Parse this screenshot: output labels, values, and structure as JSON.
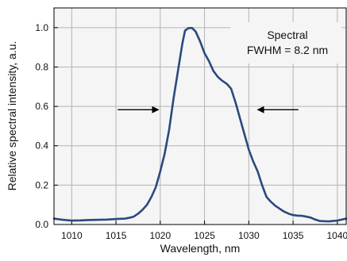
{
  "chart_data": {
    "type": "line",
    "xlabel": "Wavelength, nm",
    "ylabel": "Relative spectral intensity, a.u.",
    "xlim": [
      1008,
      1041
    ],
    "ylim": [
      0,
      1.1
    ],
    "x_ticks": [
      1010,
      1015,
      1020,
      1025,
      1030,
      1035,
      1040
    ],
    "y_ticks": [
      0.0,
      0.2,
      0.4,
      0.6,
      0.8,
      1.0
    ],
    "y_tick_labels": [
      "0.0",
      "0.2",
      "0.4",
      "0.6",
      "0.8",
      "1.0"
    ],
    "grid": true,
    "annotation": {
      "lines": [
        "Spectral",
        "FWHM = 8.2 nm"
      ]
    },
    "arrows": [
      {
        "from": [
          1015.2,
          0.583
        ],
        "to": [
          1019.8,
          0.583
        ]
      },
      {
        "from": [
          1035.6,
          0.583
        ],
        "to": [
          1031.0,
          0.583
        ]
      }
    ],
    "series": [
      {
        "color": "#2a4a7f",
        "points": [
          [
            1008.0,
            0.03
          ],
          [
            1009.0,
            0.024
          ],
          [
            1010.0,
            0.02
          ],
          [
            1011.0,
            0.021
          ],
          [
            1012.0,
            0.023
          ],
          [
            1013.0,
            0.024
          ],
          [
            1014.0,
            0.025
          ],
          [
            1015.0,
            0.028
          ],
          [
            1016.0,
            0.03
          ],
          [
            1016.5,
            0.034
          ],
          [
            1017.0,
            0.04
          ],
          [
            1017.5,
            0.055
          ],
          [
            1018.0,
            0.075
          ],
          [
            1018.5,
            0.1
          ],
          [
            1019.0,
            0.14
          ],
          [
            1019.5,
            0.19
          ],
          [
            1020.0,
            0.27
          ],
          [
            1020.5,
            0.36
          ],
          [
            1021.0,
            0.48
          ],
          [
            1021.5,
            0.64
          ],
          [
            1022.0,
            0.78
          ],
          [
            1022.5,
            0.92
          ],
          [
            1022.8,
            0.985
          ],
          [
            1023.2,
            0.998
          ],
          [
            1023.6,
            0.998
          ],
          [
            1024.0,
            0.98
          ],
          [
            1024.5,
            0.93
          ],
          [
            1025.0,
            0.87
          ],
          [
            1025.5,
            0.83
          ],
          [
            1026.0,
            0.78
          ],
          [
            1026.5,
            0.75
          ],
          [
            1027.0,
            0.73
          ],
          [
            1027.5,
            0.715
          ],
          [
            1028.0,
            0.69
          ],
          [
            1028.5,
            0.62
          ],
          [
            1029.0,
            0.54
          ],
          [
            1029.5,
            0.46
          ],
          [
            1030.0,
            0.38
          ],
          [
            1030.5,
            0.32
          ],
          [
            1031.0,
            0.27
          ],
          [
            1031.5,
            0.2
          ],
          [
            1032.0,
            0.14
          ],
          [
            1032.5,
            0.115
          ],
          [
            1033.0,
            0.095
          ],
          [
            1033.5,
            0.08
          ],
          [
            1034.0,
            0.065
          ],
          [
            1034.5,
            0.055
          ],
          [
            1035.0,
            0.048
          ],
          [
            1035.5,
            0.045
          ],
          [
            1036.0,
            0.044
          ],
          [
            1036.5,
            0.04
          ],
          [
            1037.0,
            0.035
          ],
          [
            1037.5,
            0.025
          ],
          [
            1038.0,
            0.018
          ],
          [
            1039.0,
            0.016
          ],
          [
            1040.0,
            0.02
          ],
          [
            1041.0,
            0.03
          ]
        ]
      }
    ]
  }
}
